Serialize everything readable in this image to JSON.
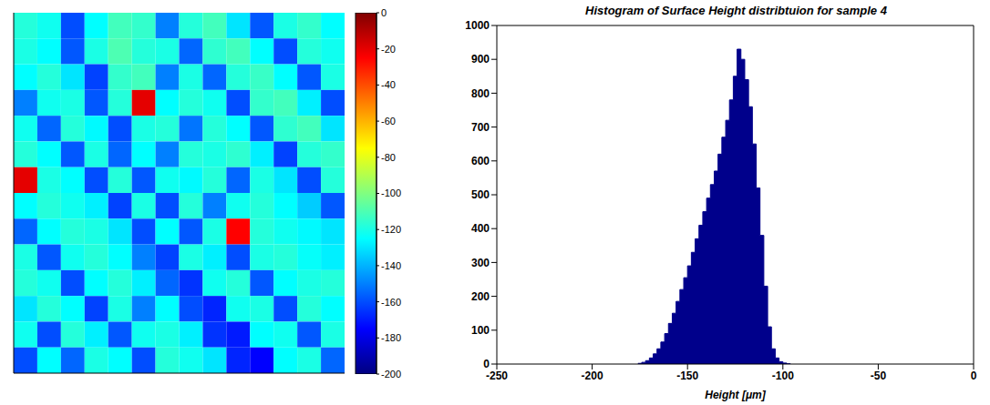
{
  "chart_data": [
    {
      "type": "heatmap",
      "tick_labels": false,
      "cells": [
        [
          -118,
          -122,
          -160,
          -125,
          -112,
          -115,
          -150,
          -118,
          -112,
          -130,
          -158,
          -120,
          -115,
          -125
        ],
        [
          -120,
          -125,
          -158,
          -120,
          -110,
          -118,
          -120,
          -155,
          -116,
          -112,
          -125,
          -160,
          -118,
          -122
        ],
        [
          -125,
          -118,
          -130,
          -162,
          -115,
          -112,
          -150,
          -120,
          -155,
          -118,
          -114,
          -125,
          -158,
          -120
        ],
        [
          -150,
          -122,
          -120,
          -158,
          -118,
          -20,
          -125,
          -118,
          -122,
          -160,
          -115,
          -112,
          -128,
          -160
        ],
        [
          -122,
          -155,
          -118,
          -126,
          -160,
          -120,
          -118,
          -152,
          -118,
          -125,
          -158,
          -116,
          -112,
          -130
        ],
        [
          -118,
          -125,
          -158,
          -120,
          -155,
          -125,
          -150,
          -118,
          -120,
          -116,
          -128,
          -162,
          -118,
          -115
        ],
        [
          -20,
          -120,
          -125,
          -160,
          -118,
          -158,
          -122,
          -126,
          -118,
          -155,
          -120,
          -130,
          -160,
          -118
        ],
        [
          -125,
          -118,
          -122,
          -128,
          -162,
          -120,
          -160,
          -118,
          -150,
          -122,
          -118,
          -125,
          -135,
          -158
        ],
        [
          -155,
          -125,
          -118,
          -120,
          -130,
          -160,
          -125,
          -158,
          -120,
          -25,
          -118,
          -122,
          -126,
          -130
        ],
        [
          -120,
          -158,
          -122,
          -118,
          -125,
          -150,
          -162,
          -120,
          -128,
          -160,
          -120,
          -118,
          -124,
          -128
        ],
        [
          -118,
          -122,
          -160,
          -125,
          -118,
          -128,
          -155,
          -165,
          -122,
          -118,
          -158,
          -125,
          -120,
          -118
        ],
        [
          -130,
          -118,
          -125,
          -162,
          -120,
          -150,
          -125,
          -160,
          -168,
          -122,
          -120,
          -160,
          -118,
          -125
        ],
        [
          -122,
          -160,
          -118,
          -128,
          -158,
          -122,
          -120,
          -128,
          -165,
          -170,
          -125,
          -122,
          -158,
          -120
        ],
        [
          -160,
          -125,
          -155,
          -120,
          -125,
          -160,
          -118,
          -122,
          -130,
          -168,
          -175,
          -125,
          -120,
          -155
        ]
      ],
      "colorbar": {
        "range": [
          -200,
          0
        ],
        "ticks": [
          0,
          -20,
          -40,
          -60,
          -80,
          -100,
          -120,
          -140,
          -160,
          -180,
          -200
        ]
      }
    },
    {
      "type": "histogram",
      "title": "Histogram of Surface Height distribtuion for sample 4",
      "x_label": "Height [μm]",
      "color": "#00008b",
      "bins": [
        -176,
        -174,
        -172,
        -170,
        -168,
        -166,
        -164,
        -162,
        -160,
        -158,
        -156,
        -154,
        -152,
        -150,
        -148,
        -146,
        -144,
        -142,
        -140,
        -138,
        -136,
        -134,
        -132,
        -130,
        -128,
        -126,
        -124,
        -122,
        -120,
        -118,
        -116,
        -114,
        -112,
        -110,
        -108,
        -106,
        -104,
        -102,
        -100,
        -98,
        -96
      ],
      "counts": [
        2,
        5,
        10,
        18,
        30,
        45,
        65,
        90,
        120,
        150,
        185,
        220,
        255,
        290,
        330,
        370,
        410,
        450,
        490,
        530,
        570,
        620,
        670,
        720,
        780,
        850,
        930,
        900,
        840,
        760,
        650,
        520,
        380,
        230,
        110,
        45,
        18,
        7,
        3,
        1
      ],
      "xlim": [
        -250,
        0
      ],
      "ylim": [
        0,
        1000
      ],
      "xticks": [
        -250,
        -200,
        -150,
        -100,
        -50,
        0
      ],
      "yticks": [
        0,
        100,
        200,
        300,
        400,
        500,
        600,
        700,
        800,
        900,
        1000
      ]
    }
  ]
}
